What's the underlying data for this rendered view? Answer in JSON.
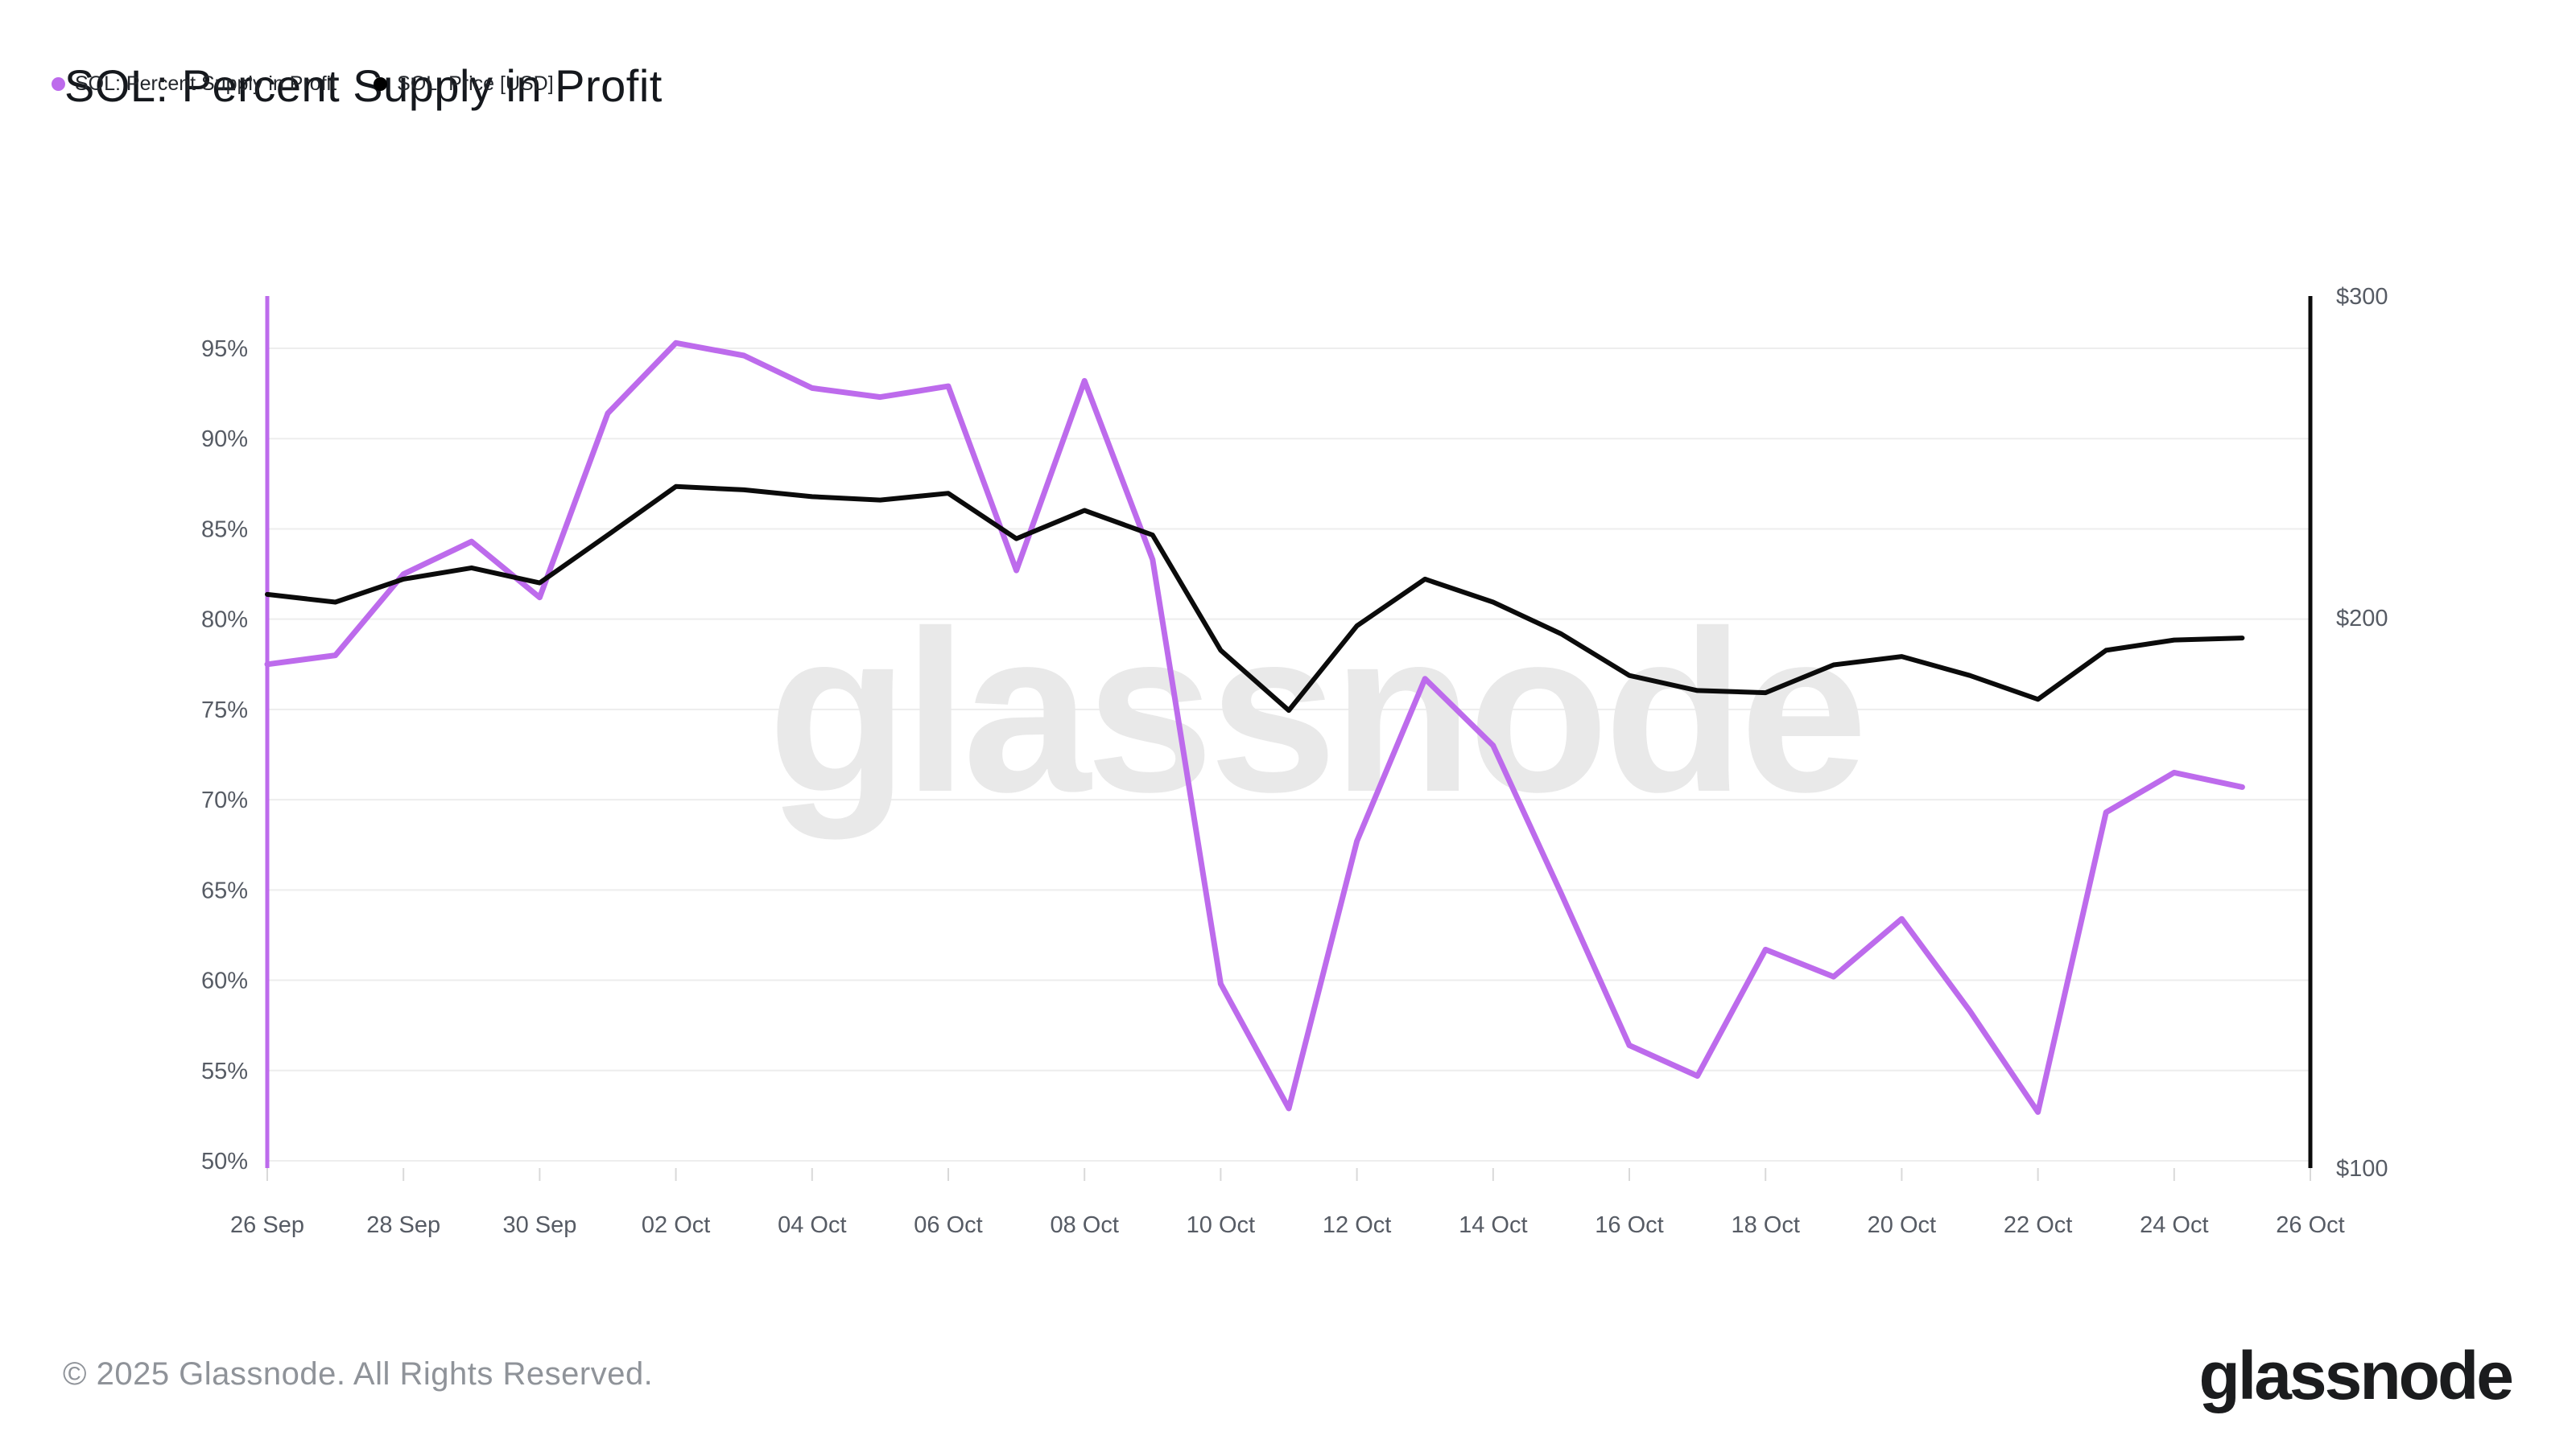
{
  "title": "SOL: Percent Supply in Profit",
  "legend": [
    {
      "label": "SOL: Percent Supply in Profit",
      "color": "#bd6bec"
    },
    {
      "label": "SOL: Price [USD]",
      "color": "#000000"
    }
  ],
  "watermark": "glassnode",
  "footer": {
    "copyright": "© 2025 Glassnode. All Rights Reserved.",
    "brand": "glassnode"
  },
  "colors": {
    "percent_line": "#bd6bec",
    "price_line": "#0b0b0b",
    "grid": "#ededed",
    "axis_text": "#565b64",
    "watermark": "#e9e9e9",
    "tick": "#d9d9d9"
  },
  "chart_data": {
    "type": "line",
    "title": "SOL: Percent Supply in Profit",
    "x_dates": [
      "26 Sep",
      "27 Sep",
      "28 Sep",
      "29 Sep",
      "30 Sep",
      "01 Oct",
      "02 Oct",
      "03 Oct",
      "04 Oct",
      "05 Oct",
      "06 Oct",
      "07 Oct",
      "08 Oct",
      "09 Oct",
      "10 Oct",
      "11 Oct",
      "12 Oct",
      "13 Oct",
      "14 Oct",
      "15 Oct",
      "16 Oct",
      "17 Oct",
      "18 Oct",
      "19 Oct",
      "20 Oct",
      "21 Oct",
      "22 Oct",
      "23 Oct",
      "24 Oct",
      "25 Oct"
    ],
    "x_tick_labels": [
      "26 Sep",
      "28 Sep",
      "30 Sep",
      "02 Oct",
      "04 Oct",
      "06 Oct",
      "08 Oct",
      "10 Oct",
      "12 Oct",
      "14 Oct",
      "16 Oct",
      "18 Oct",
      "20 Oct",
      "22 Oct",
      "24 Oct",
      "26 Oct"
    ],
    "series": [
      {
        "name": "SOL: Percent Supply in Profit",
        "axis": "left",
        "unit": "%",
        "color": "#bd6bec",
        "values": [
          77.5,
          78.0,
          82.5,
          84.3,
          81.2,
          91.4,
          95.3,
          94.6,
          92.8,
          92.3,
          92.9,
          82.7,
          93.2,
          83.3,
          59.8,
          52.9,
          67.7,
          76.7,
          73.0,
          64.8,
          56.4,
          54.7,
          61.7,
          60.2,
          63.4,
          58.3,
          52.7,
          69.3,
          71.5,
          70.7
        ]
      },
      {
        "name": "SOL: Price [USD]",
        "axis": "right",
        "unit": "USD",
        "color": "#0b0b0b",
        "values": [
          206,
          204,
          210,
          213,
          209,
          222,
          236,
          235,
          233,
          232,
          234,
          221,
          229,
          222,
          192,
          178,
          198,
          210,
          204,
          196,
          186,
          182.5,
          182,
          188.5,
          190.5,
          186,
          180.5,
          192,
          194.5,
          195
        ]
      }
    ],
    "left_axis": {
      "scale": "linear",
      "ticks": [
        95,
        90,
        85,
        80,
        75,
        70,
        65,
        60,
        55,
        50
      ],
      "tick_suffix": "%",
      "range": [
        49.5,
        98.0
      ]
    },
    "right_axis": {
      "scale": "log",
      "ticks": [
        300,
        200,
        100
      ],
      "tick_labels": [
        "$300",
        "$200",
        "$100"
      ],
      "range": [
        100,
        300
      ]
    },
    "grid": "horizontal",
    "legend_position": "top-left"
  }
}
